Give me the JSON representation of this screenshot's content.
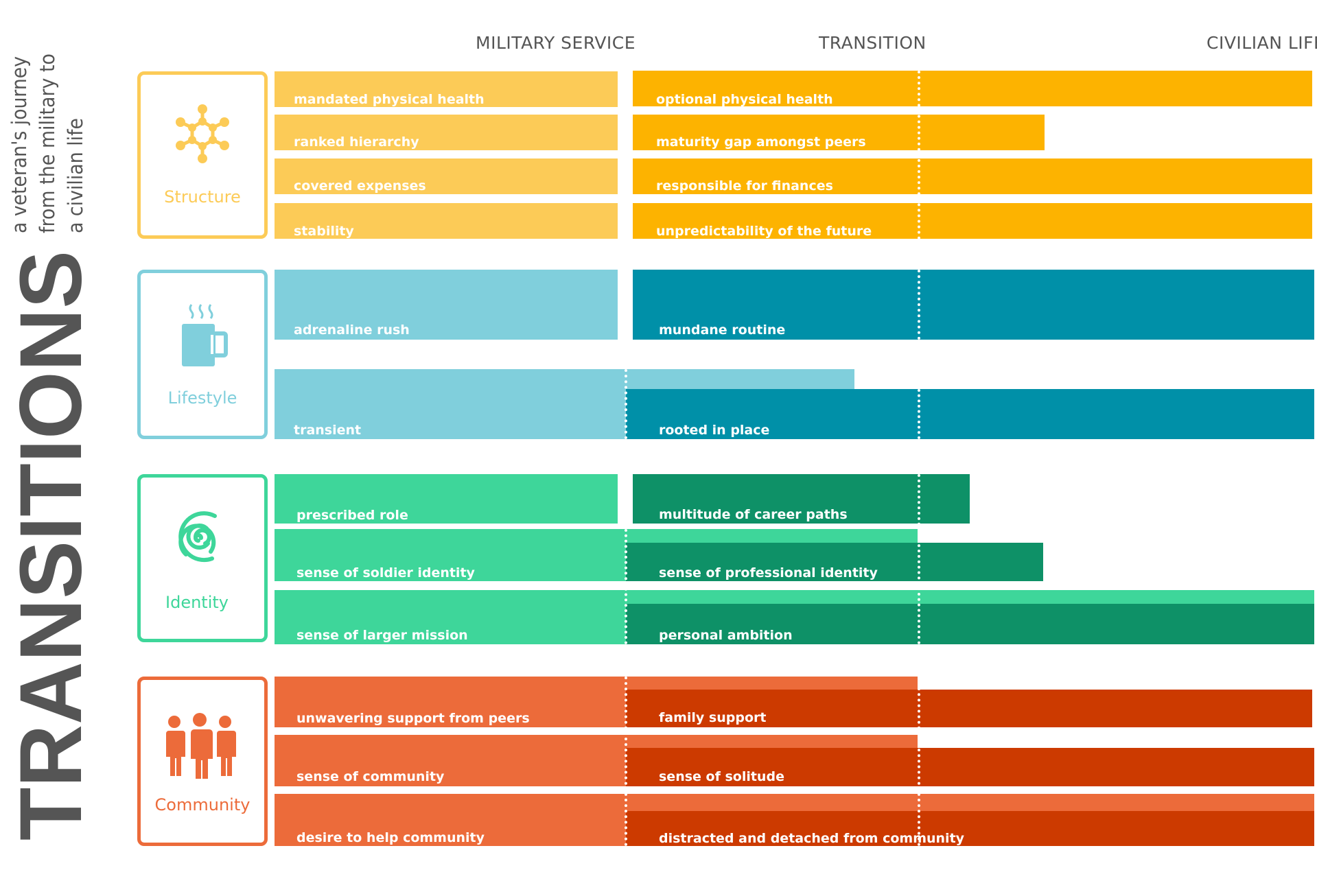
{
  "title": {
    "main": "TRANSITIONS",
    "subtitle_lines": [
      "a veteran's journey",
      "from the military to",
      "a civilian life"
    ]
  },
  "columns": {
    "military": "MILITARY SERVICE",
    "transition": "TRANSITION",
    "civilian": "CIVILIAN LIFE"
  },
  "colors": {
    "structure_light": "#FCCB57",
    "structure_dark": "#FDB300",
    "lifestyle_light": "#80CFDC",
    "lifestyle_dark": "#0090A8",
    "identity_light": "#3ED69A",
    "identity_dark": "#0E9167",
    "community_light": "#EC6B3A",
    "community_dark": "#CC3A00",
    "title_gray": "#555555"
  },
  "categories": [
    {
      "name": "Structure",
      "icon": "network-icon",
      "military": [
        "mandated physical health",
        "ranked hierarchy",
        "covered expenses",
        "stability"
      ],
      "civilian": [
        "optional physical health",
        "maturity gap amongst peers",
        "responsible for finances",
        "unpredictability of  the future"
      ]
    },
    {
      "name": "Lifestyle",
      "icon": "coffee-mug-icon",
      "military": [
        "adrenaline rush",
        "transient"
      ],
      "civilian": [
        "mundane routine",
        "rooted in place"
      ]
    },
    {
      "name": "Identity",
      "icon": "fingerprint-icon",
      "military": [
        "prescribed role",
        "sense of soldier identity",
        "sense of larger mission"
      ],
      "civilian": [
        "multitude of career paths",
        "sense of professional identity",
        "personal ambition"
      ]
    },
    {
      "name": "Community",
      "icon": "people-icon",
      "military": [
        "unwavering support from peers",
        "sense of community",
        "desire to help community"
      ],
      "civilian": [
        "family support",
        "sense of solitude",
        "distracted and detached from community"
      ]
    }
  ]
}
